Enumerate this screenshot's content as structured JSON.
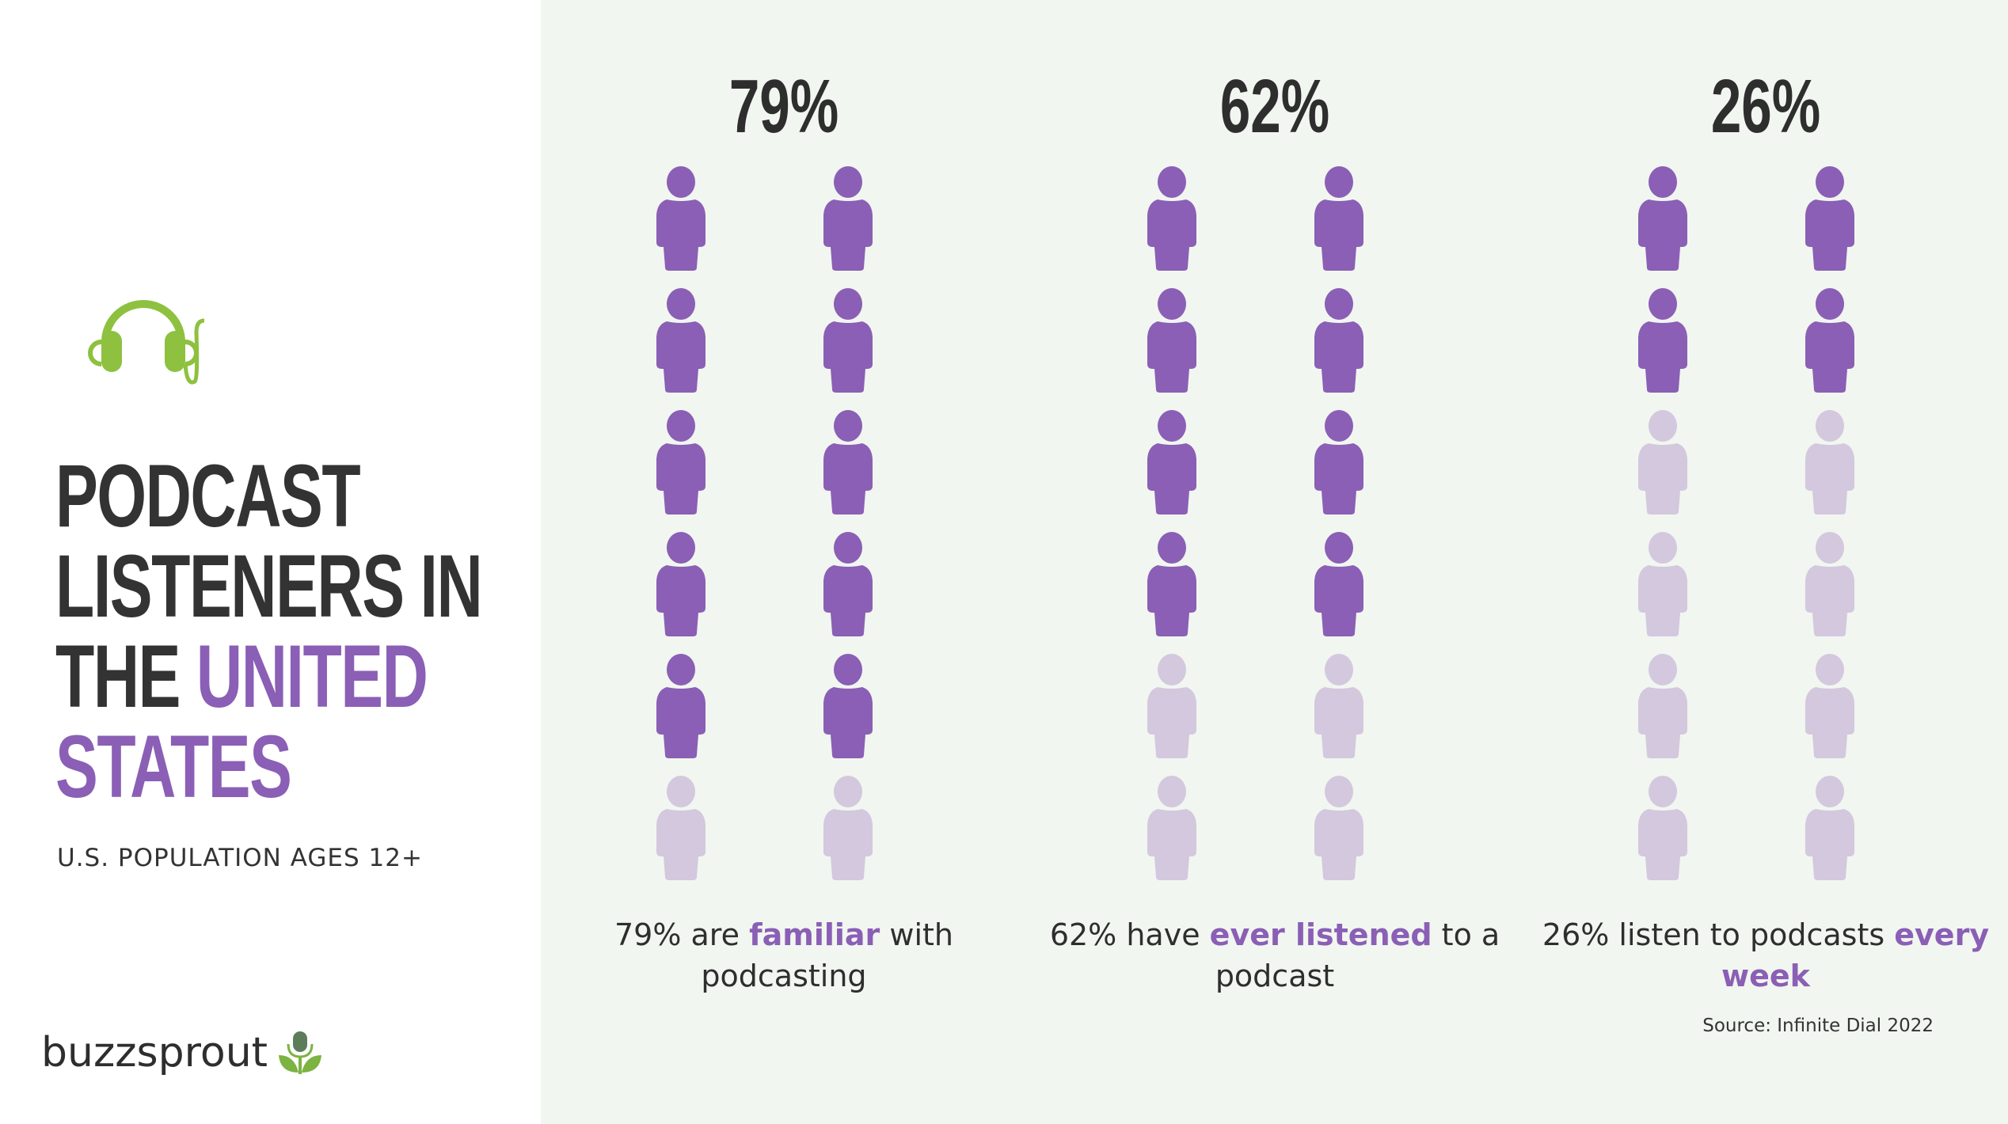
{
  "title": {
    "line1": "PODCAST",
    "line2": "LISTENERS IN",
    "line3_plain": "THE ",
    "line3_accent": "UNITED",
    "line4_accent": "STATES"
  },
  "subtitle": "U.S. POPULATION AGES 12+",
  "logo": {
    "text": "buzzsprout",
    "icon": "microphone-sprout-icon"
  },
  "header_icon": "headphones-icon",
  "colors": {
    "accent_purple": "#8a5fb5",
    "inactive_purple": "#d3c8dd",
    "green": "#8dc13f",
    "text_dark": "#2e2e2e",
    "right_bg": "#f1f6f0"
  },
  "columns": [
    {
      "percent_label": "79%",
      "caption_pre": "79% are ",
      "caption_hl": "familiar",
      "caption_post": " with podcasting",
      "filled_count": 10,
      "total_count": 12
    },
    {
      "percent_label": "62%",
      "caption_pre": "62% have ",
      "caption_hl": "ever listened",
      "caption_post": " to a podcast",
      "filled_count": 8,
      "total_count": 12
    },
    {
      "percent_label": "26%",
      "caption_pre": "26% listen to podcasts ",
      "caption_hl": "every week",
      "caption_post": "",
      "filled_count": 4,
      "total_count": 12
    }
  ],
  "source": "Source: Infinite Dial 2022",
  "chart_data": {
    "type": "pictogram",
    "title": "Podcast Listeners in the United States",
    "subtitle": "U.S. Population Ages 12+",
    "categories": [
      "Familiar with podcasting",
      "Ever listened to a podcast",
      "Listen every week"
    ],
    "values": [
      79,
      62,
      26
    ],
    "unit": "%",
    "icons_per_category": 12,
    "icons_filled": [
      10,
      8,
      4
    ],
    "grid": "2 columns x 6 rows per category",
    "source": "Source: Infinite Dial 2022"
  }
}
